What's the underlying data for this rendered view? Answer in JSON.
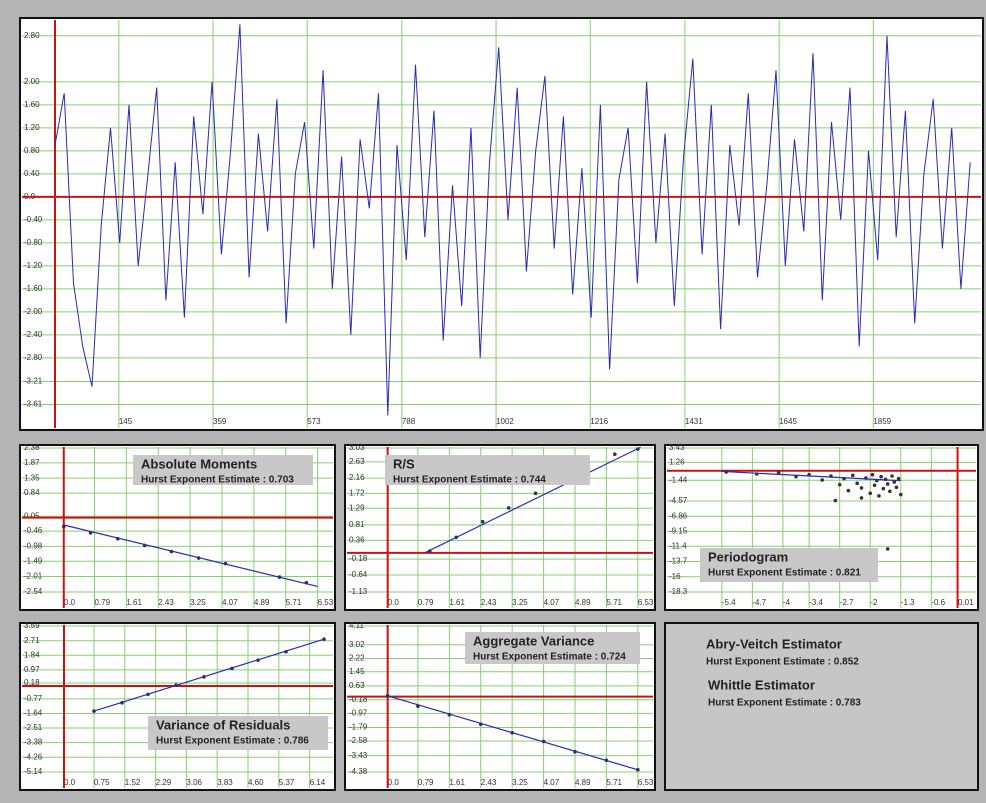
{
  "chart_data": [
    {
      "type": "line",
      "color": "#2a2ab8",
      "grid": true,
      "x": [
        0,
        21,
        42,
        63,
        84,
        105,
        126,
        147,
        168,
        189,
        210,
        231,
        252,
        273,
        294,
        315,
        336,
        357,
        378,
        399,
        420,
        441,
        462,
        483,
        504,
        525,
        546,
        567,
        588,
        609,
        630,
        651,
        672,
        693,
        714,
        735,
        756,
        777,
        798,
        819,
        840,
        861,
        882,
        903,
        924,
        945,
        966,
        987,
        1008,
        1029,
        1050,
        1071,
        1092,
        1113,
        1134,
        1155,
        1176,
        1197,
        1218,
        1239,
        1260,
        1281,
        1302,
        1323,
        1344,
        1365,
        1386,
        1407,
        1428,
        1449,
        1470,
        1491,
        1512,
        1533,
        1554,
        1575,
        1596,
        1617,
        1638,
        1659,
        1680,
        1701,
        1722,
        1743,
        1764,
        1785,
        1806,
        1827,
        1848,
        1869,
        1890,
        1911,
        1932,
        1953,
        1974,
        1995,
        2016,
        2037,
        2058,
        2079
      ],
      "values": [
        0.9,
        1.8,
        -1.5,
        -2.6,
        -3.3,
        -0.5,
        1.2,
        -0.8,
        1.6,
        -1.2,
        0.3,
        1.9,
        -1.8,
        0.6,
        -2.1,
        1.4,
        -0.3,
        2.0,
        -1.0,
        0.8,
        3.0,
        -1.4,
        1.1,
        -0.6,
        1.7,
        -2.2,
        0.4,
        1.3,
        -0.9,
        2.2,
        -1.6,
        0.7,
        -2.4,
        1.0,
        -0.2,
        1.8,
        -3.8,
        0.9,
        -1.1,
        2.3,
        -0.7,
        1.5,
        -2.5,
        0.2,
        -1.9,
        1.2,
        -2.8,
        0.6,
        2.6,
        -0.4,
        1.9,
        -1.3,
        0.8,
        2.1,
        -0.9,
        1.4,
        -1.7,
        0.5,
        -2.1,
        1.6,
        -3.0,
        0.3,
        1.2,
        -1.5,
        2.0,
        -0.8,
        1.1,
        -1.9,
        0.7,
        2.4,
        -1.0,
        1.6,
        -2.3,
        0.9,
        -0.5,
        1.8,
        -1.4,
        0.2,
        2.2,
        -1.2,
        1.0,
        -0.6,
        2.5,
        -1.8,
        1.3,
        -0.4,
        1.9,
        -2.6,
        0.8,
        -1.1,
        2.8,
        -0.7,
        1.5,
        -2.2,
        0.4,
        1.7,
        -0.9,
        1.2,
        -1.6,
        0.6
      ],
      "xlim": [
        0,
        2090
      ],
      "xticks": [
        145,
        359,
        573,
        788,
        1002,
        1216,
        1431,
        1645,
        1859
      ],
      "ylim": [
        -3.88,
        3.04
      ],
      "yticks": [
        {
          "value": 2.8,
          "label": "2.80"
        },
        {
          "value": 2.0,
          "label": "2.00"
        },
        {
          "value": 1.6,
          "label": "1.60"
        },
        {
          "value": 1.2,
          "label": "1.20"
        },
        {
          "value": 0.8,
          "label": "0.80"
        },
        {
          "value": 0.4,
          "label": "0.40"
        },
        {
          "value": 0,
          "label": "0.0"
        },
        {
          "value": -0.4,
          "label": "-0.40"
        },
        {
          "value": -0.8,
          "label": "-0.80"
        },
        {
          "value": -1.2,
          "label": "-1.20"
        },
        {
          "value": -1.6,
          "label": "-1.60"
        },
        {
          "value": -2.0,
          "label": "-2.00"
        },
        {
          "value": -2.4,
          "label": "-2.40"
        },
        {
          "value": -2.8,
          "label": "-2.80"
        },
        -3.21,
        -3.61
      ]
    },
    {
      "type": "scatter",
      "title": "Absolute Moments",
      "subtitle": "Hurst Exponent Estimate : 0.703",
      "grid": true,
      "series": [
        {
          "type": "scatter",
          "color": "#333333",
          "x": [
            0,
            0.69,
            1.39,
            2.08,
            2.77,
            3.47,
            4.16,
            5.55,
            6.24
          ],
          "values": [
            -0.3,
            -0.52,
            -0.72,
            -0.95,
            -1.16,
            -1.38,
            -1.57,
            -2.03,
            -2.22
          ]
        },
        {
          "type": "line",
          "color": "#2a2ab8",
          "x": [
            0,
            6.53
          ],
          "values": [
            -0.25,
            -2.35
          ]
        }
      ],
      "xlim": [
        -0.2,
        6.9
      ],
      "xticks": [
        {
          "value": 0,
          "label": "0.0"
        },
        0.79,
        1.61,
        2.43,
        3.25,
        4.07,
        4.89,
        5.71,
        6.53
      ],
      "ylim": [
        -2.54,
        2.38
      ],
      "yticks": [
        2.38,
        1.87,
        1.35,
        0.84,
        0.05,
        -0.46,
        -0.98,
        -1.49,
        -2.01,
        -2.54
      ]
    },
    {
      "type": "scatter",
      "title": "R/S",
      "subtitle": "Hurst Exponent Estimate : 0.744",
      "grid": true,
      "series": [
        {
          "type": "scatter",
          "color": "#333333",
          "x": [
            1.1,
            1.79,
            2.48,
            3.16,
            3.86,
            4.55,
            5.24,
            5.93,
            6.53
          ],
          "values": [
            0.05,
            0.45,
            0.9,
            1.3,
            1.72,
            2.08,
            2.45,
            2.85,
            3.0
          ]
        },
        {
          "type": "line",
          "color": "#2a2ab8",
          "x": [
            1.0,
            6.6
          ],
          "values": [
            0.02,
            3.05
          ]
        }
      ],
      "xlim": [
        -0.2,
        6.9
      ],
      "xticks": [
        {
          "value": 0,
          "label": "0.0"
        },
        0.79,
        1.61,
        2.43,
        3.25,
        4.07,
        4.89,
        5.71,
        6.53
      ],
      "ylim": [
        -1.13,
        3.03
      ],
      "yticks": [
        3.03,
        2.63,
        2.16,
        1.72,
        1.29,
        0.81,
        0.36,
        -0.18,
        -0.64,
        -1.13
      ]
    },
    {
      "type": "scatter",
      "title": "Periodogram",
      "subtitle": "Hurst Exponent Estimate : 0.821",
      "grid": true,
      "series": [
        {
          "type": "scatter",
          "color": "#333333",
          "x": [
            -5.3,
            -4.6,
            -4.1,
            -3.7,
            -3.4,
            -3.1,
            -2.9,
            -2.7,
            -2.6,
            -2.5,
            -2.4,
            -2.3,
            -2.2,
            -2.1,
            -2.0,
            -1.95,
            -1.9,
            -1.85,
            -1.8,
            -1.75,
            -1.7,
            -1.65,
            -1.6,
            -1.55,
            -1.5,
            -1.45,
            -1.4,
            -1.35,
            -1.3,
            -2.8,
            -2.2,
            -1.6
          ],
          "values": [
            -0.2,
            -0.5,
            -0.3,
            -0.9,
            -0.6,
            -1.4,
            -0.8,
            -2.1,
            -1.2,
            -3.0,
            -0.7,
            -1.9,
            -2.6,
            -1.1,
            -3.4,
            -0.6,
            -2.2,
            -1.5,
            -3.8,
            -0.9,
            -2.7,
            -1.3,
            -2.0,
            -3.1,
            -0.8,
            -1.7,
            -2.5,
            -1.2,
            -3.6,
            -4.5,
            -4.1,
            -11.8
          ]
        },
        {
          "type": "line",
          "color": "#2a2ab8",
          "x": [
            -5.4,
            -1.3
          ],
          "values": [
            -0.1,
            -1.5
          ]
        }
      ],
      "xlim": [
        -5.9,
        0.4
      ],
      "xticks": [
        -5.4,
        -4.7,
        -4.0,
        -3.4,
        -2.7,
        -2.0,
        -1.3,
        -0.6,
        0.01
      ],
      "ylim": [
        -18.3,
        3.43
      ],
      "yticks": [
        3.43,
        1.26,
        -1.44,
        -4.57,
        -6.86,
        -9.15,
        -11.4,
        -13.7,
        -16.0,
        -18.3
      ]
    },
    {
      "type": "scatter",
      "title": "Variance of Residuals",
      "subtitle": "Hurst Exponent Estimate : 0.786",
      "grid": true,
      "series": [
        {
          "type": "scatter",
          "color": "#333333",
          "x": [
            0.75,
            1.45,
            2.1,
            2.8,
            3.5,
            4.2,
            4.85,
            5.55,
            6.5
          ],
          "values": [
            -1.5,
            -1.0,
            -0.5,
            0.05,
            0.55,
            1.05,
            1.55,
            2.05,
            2.8
          ]
        },
        {
          "type": "line",
          "color": "#2a2ab8",
          "x": [
            0.75,
            6.5
          ],
          "values": [
            -1.5,
            2.8
          ]
        }
      ],
      "xlim": [
        -0.2,
        6.7
      ],
      "xticks": [
        {
          "value": 0,
          "label": "0.0"
        },
        0.75,
        1.52,
        2.29,
        3.06,
        3.83,
        {
          "value": 4.6,
          "label": "4.60"
        },
        5.37,
        6.14
      ],
      "ylim": [
        -5.14,
        3.59
      ],
      "yticks": [
        3.59,
        2.71,
        1.84,
        0.97,
        0.18,
        -0.77,
        -1.64,
        -2.51,
        -3.38,
        -4.26,
        -5.14
      ]
    },
    {
      "type": "scatter",
      "title": "Aggregate Variance",
      "subtitle": "Hurst Exponent Estimate : 0.724",
      "grid": true,
      "series": [
        {
          "type": "scatter",
          "color": "#333333",
          "x": [
            0,
            0.79,
            1.61,
            2.43,
            3.25,
            4.07,
            4.89,
            5.71,
            6.53
          ],
          "values": [
            0.05,
            -0.55,
            -1.05,
            -1.6,
            -2.1,
            -2.6,
            -3.2,
            -3.7,
            -4.25
          ]
        },
        {
          "type": "line",
          "color": "#2a2ab8",
          "x": [
            0,
            6.53
          ],
          "values": [
            0.05,
            -4.25
          ]
        }
      ],
      "xlim": [
        -0.2,
        6.9
      ],
      "xticks": [
        {
          "value": 0,
          "label": "0.0"
        },
        0.79,
        1.61,
        2.43,
        3.25,
        4.07,
        4.89,
        5.71,
        6.53
      ],
      "ylim": [
        -4.38,
        4.11
      ],
      "yticks": [
        4.11,
        3.02,
        2.22,
        1.45,
        0.63,
        -0.18,
        -0.97,
        -1.79,
        -2.58,
        -3.43,
        -4.38
      ]
    }
  ],
  "estimators": [
    {
      "title": "Abry-Veitch Estimator",
      "estimate": "Hurst Exponent Estimate : 0.852"
    },
    {
      "title": "Whittle Estimator",
      "estimate": "Hurst Exponent Estimate : 0.783"
    }
  ]
}
